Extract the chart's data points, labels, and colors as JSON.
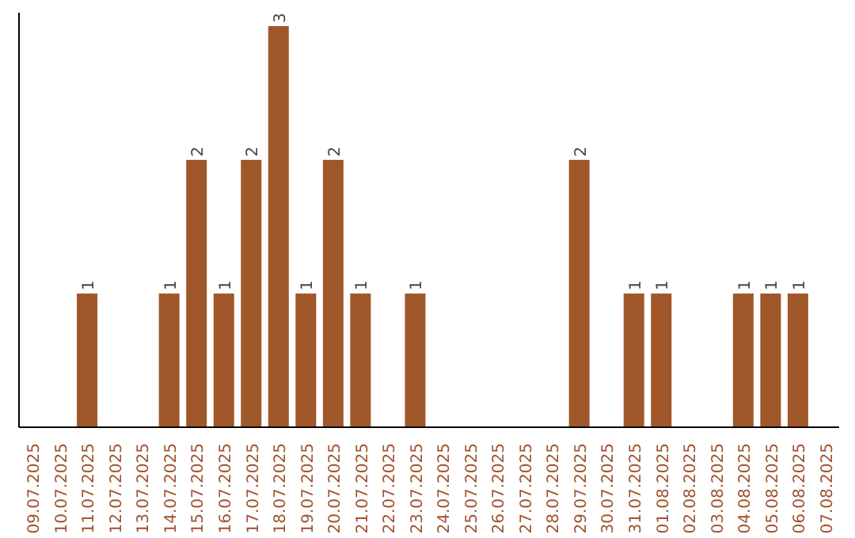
{
  "chart_data": {
    "type": "bar",
    "categories": [
      "09.07.2025",
      "10.07.2025",
      "11.07.2025",
      "12.07.2025",
      "13.07.2025",
      "14.07.2025",
      "15.07.2025",
      "16.07.2025",
      "17.07.2025",
      "18.07.2025",
      "19.07.2025",
      "20.07.2025",
      "21.07.2025",
      "22.07.2025",
      "23.07.2025",
      "24.07.2025",
      "25.07.2025",
      "26.07.2025",
      "27.07.2025",
      "28.07.2025",
      "29.07.2025",
      "30.07.2025",
      "31.07.2025",
      "01.08.2025",
      "02.08.2025",
      "03.08.2025",
      "04.08.2025",
      "05.08.2025",
      "06.08.2025",
      "07.08.2025"
    ],
    "values": [
      0,
      0,
      1,
      0,
      0,
      1,
      2,
      1,
      2,
      3,
      1,
      2,
      1,
      0,
      1,
      0,
      0,
      0,
      0,
      0,
      2,
      0,
      1,
      1,
      0,
      0,
      1,
      1,
      1,
      0
    ],
    "value_labels": [
      null,
      null,
      "1",
      null,
      null,
      "1",
      "2",
      "1",
      "2",
      "3",
      "1",
      "2",
      "1",
      null,
      "1",
      null,
      null,
      null,
      null,
      null,
      "2",
      null,
      "1",
      "1",
      null,
      null,
      "1",
      "1",
      "1",
      null
    ],
    "color": "#a0572a",
    "ylim": [
      0,
      3.1
    ],
    "tick_labels": "x",
    "grid": false
  }
}
